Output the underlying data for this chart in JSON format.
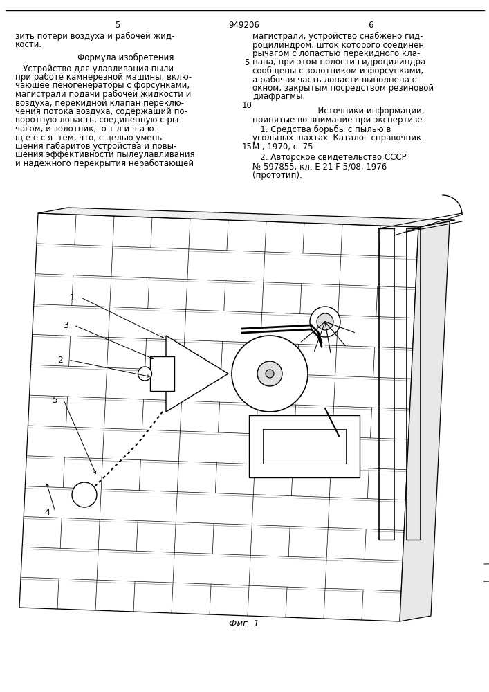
{
  "page_number_left": "5",
  "page_number_center": "949206",
  "page_number_right": "6",
  "left_col_lines": [
    "зить потери воздуха и рабочей жид-",
    "кости."
  ],
  "formula_title": "Формула изобретения",
  "formula_body": [
    "   Устройство для улавливания пыли",
    "при работе камнерезной машины, вклю-",
    "чающее пеногенераторы с форсунками,",
    "магистрали подачи рабочей жидкости и",
    "воздуха, перекидной клапан переклю-",
    "чения потока воздуха, содержащий по-",
    "воротную лопасть, соединенную с ры-",
    "чагом, и золотник,  о т л и ч а ю -",
    "щ е е с я  тем, что, с целью умень-",
    "шения габаритов устройства и повы-",
    "шения эффективности пылеулавливания",
    "и надежного перекрытия неработающей"
  ],
  "right_col_lines": [
    "магистрали, устройство снабжено гид-",
    "роцилиндром, шток которого соединен",
    "рычагом с лопастью перекидного кла-",
    "пана, при этом полости гидроцилиндра",
    "сообщены с золотником и форсунками,",
    "а рабочая часть лопасти выполнена с",
    "окном, закрытым посредством резиновой",
    "диафрагмы."
  ],
  "line_num_5_row": 3,
  "sources_title": "      Источники информации,",
  "sources_sub": "принятые во внимание при экспертизе",
  "source1_lines": [
    "   1. Средства борьбы с пылью в",
    "угольных шахтах. Каталог-справочник.",
    "М., 1970, с. 75."
  ],
  "source2_lines": [
    "   2. Авторское свидетельство СССР",
    "№ 597855, кл. Е 21 F 5/08, 1976",
    "(прототип)."
  ],
  "fig_label": "Фиг. 1",
  "bg_color": "#ffffff",
  "line_color": "#000000",
  "brick_fill": "#ffffff",
  "brick_edge": "#333333",
  "font_size": 8.5
}
